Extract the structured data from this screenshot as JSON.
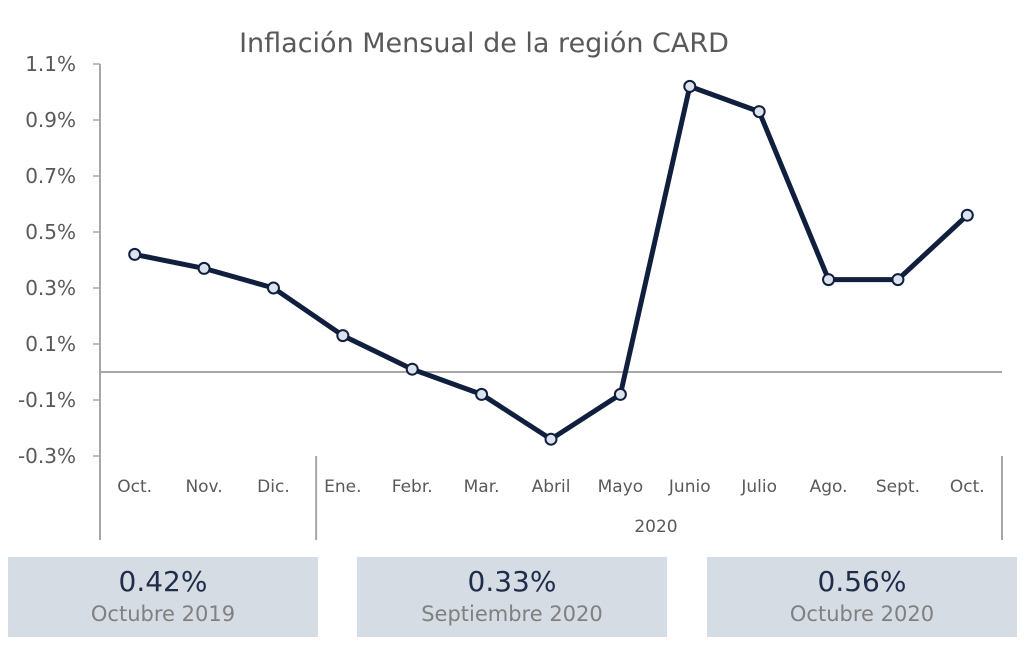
{
  "chart_data": {
    "type": "line",
    "title": "Inflación Mensual de la región CARD",
    "categories": [
      "Oct.",
      "Nov.",
      "Dic.",
      "Ene.",
      "Febr.",
      "Mar.",
      "Abril",
      "Mayo",
      "Junio",
      "Julio",
      "Ago.",
      "Sept.",
      "Oct."
    ],
    "group_label": "2020",
    "series": [
      {
        "values": [
          0.42,
          0.37,
          0.3,
          0.13,
          0.01,
          -0.08,
          -0.24,
          -0.08,
          1.02,
          0.93,
          0.33,
          0.33,
          0.56
        ]
      }
    ],
    "ylim": [
      -0.3,
      1.1
    ],
    "yticks": [
      "1.1%",
      "0.9%",
      "0.7%",
      "0.5%",
      "0.3%",
      "0.1%",
      "-0.1%",
      "-0.3%"
    ],
    "colors": {
      "line": "#0f1f3d",
      "marker_fill": "#dce3ee",
      "axis": "#a6a6a6"
    }
  },
  "summary_cards": [
    {
      "value": "0.42%",
      "label": "Octubre 2019"
    },
    {
      "value": "0.33%",
      "label": "Septiembre 2020"
    },
    {
      "value": "0.56%",
      "label": "Octubre 2020"
    }
  ]
}
